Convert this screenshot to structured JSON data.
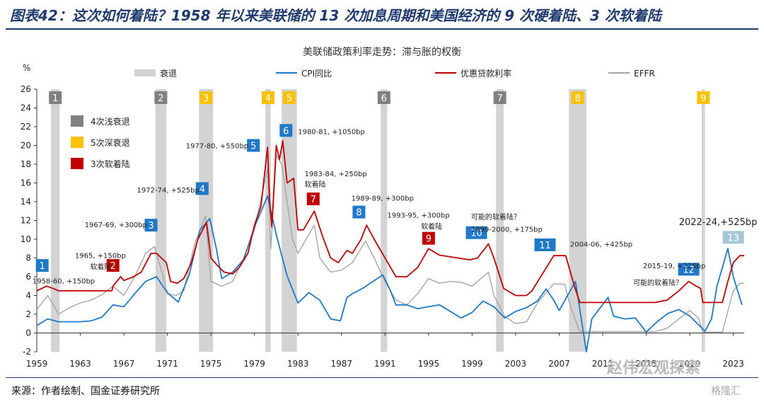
{
  "heading": "图表42：这次如何着陆？1958 年以来美联储的 13 次加息周期和美国经济的 9 次硬着陆、3 次软着陆",
  "source": "来源：作者绘制、国金证券研究所",
  "watermark": "赵伟宏观探索",
  "watermark2": "格隆汇",
  "chart_data": {
    "type": "line",
    "title": "美联储政策利率走势：滞与胀的权衡",
    "ylabel": "%",
    "ylim": [
      -2,
      26
    ],
    "yticks": [
      "-2",
      "0",
      "2",
      "4",
      "6",
      "8",
      "10",
      "12",
      "14",
      "16",
      "18",
      "20",
      "22",
      "24",
      "26"
    ],
    "xlim": [
      1959,
      2024
    ],
    "xticks": [
      "1959",
      "1963",
      "1967",
      "1971",
      "1975",
      "1979",
      "1983",
      "1987",
      "1991",
      "1995",
      "1999",
      "2003",
      "2007",
      "2011",
      "2015",
      "2019",
      "2023"
    ],
    "legend": {
      "placement": "top",
      "entries": [
        "衰退",
        "CPI同比",
        "优惠贷款利率",
        "EFFR"
      ]
    },
    "colors": {
      "recession": "#d3d3d3",
      "cpi": "#1f78c8",
      "prime": "#c00000",
      "effr": "#a6a6a6",
      "shallow": "#808080",
      "deep": "#ffc000",
      "soft": "#c00000",
      "hike": "#1f78c8",
      "hike13": "#a5c8d8"
    },
    "box_legend": [
      {
        "label": "4次浅衰退",
        "type": "shallow"
      },
      {
        "label": "5次深衰退",
        "type": "deep"
      },
      {
        "label": "3次软着陆",
        "type": "soft"
      }
    ],
    "recessions": [
      {
        "num": "1",
        "start": 1960.3,
        "end": 1961.1,
        "type": "shallow"
      },
      {
        "num": "2",
        "start": 1969.9,
        "end": 1970.9,
        "type": "shallow"
      },
      {
        "num": "3",
        "start": 1973.9,
        "end": 1975.2,
        "type": "deep"
      },
      {
        "num": "4",
        "start": 1980.0,
        "end": 1980.5,
        "type": "deep"
      },
      {
        "num": "5",
        "start": 1981.5,
        "end": 1982.9,
        "type": "deep"
      },
      {
        "num": "6",
        "start": 1990.6,
        "end": 1991.2,
        "type": "shallow"
      },
      {
        "num": "7",
        "start": 2001.2,
        "end": 2001.9,
        "type": "shallow"
      },
      {
        "num": "8",
        "start": 2007.9,
        "end": 2009.5,
        "type": "deep"
      },
      {
        "num": "9",
        "start": 2020.1,
        "end": 2020.4,
        "type": "deep"
      }
    ],
    "hike_boxes": [
      {
        "num": "1",
        "x": 1959.5,
        "y": 7.2,
        "type": "hike"
      },
      {
        "num": "2",
        "x": 1966.0,
        "y": 7.2,
        "type": "soft"
      },
      {
        "num": "3",
        "x": 1969.5,
        "y": 11.5,
        "type": "hike"
      },
      {
        "num": "4",
        "x": 1974.2,
        "y": 15.4,
        "type": "hike"
      },
      {
        "num": "5",
        "x": 1978.9,
        "y": 20.0,
        "type": "hike"
      },
      {
        "num": "6",
        "x": 1981.9,
        "y": 21.6,
        "type": "hike"
      },
      {
        "num": "7",
        "x": 1984.4,
        "y": 14.3,
        "type": "soft"
      },
      {
        "num": "8",
        "x": 1988.6,
        "y": 12.9,
        "type": "hike"
      },
      {
        "num": "9",
        "x": 1995.0,
        "y": 10.1,
        "type": "soft"
      },
      {
        "num": "10",
        "x": 1999.4,
        "y": 10.7,
        "type": "hike"
      },
      {
        "num": "11",
        "x": 2005.7,
        "y": 9.4,
        "type": "hike"
      },
      {
        "num": "12",
        "x": 2018.9,
        "y": 6.8,
        "type": "hike"
      },
      {
        "num": "13",
        "x": 2023.0,
        "y": 10.2,
        "type": "hike13"
      }
    ],
    "annotations": [
      {
        "text": "1958-60, +150bp",
        "x": 1958.6,
        "y": 5.3,
        "colored_suffix": false
      },
      {
        "text": "1965, +150bp",
        "x": 1962.5,
        "y": 8.0
      },
      {
        "text": "软着陆",
        "x": 1963.9,
        "y": 6.8
      },
      {
        "text": "1967-69, +300bp",
        "x": 1963.4,
        "y": 11.3
      },
      {
        "text": "1972-74, +525bp",
        "x": 1968.2,
        "y": 15.0
      },
      {
        "text": "1977-80, +550bp",
        "x": 1972.7,
        "y": 19.7
      },
      {
        "text": "1980-81, +1050bp",
        "x": 1983.0,
        "y": 21.2
      },
      {
        "text": "1983-84, +250bp",
        "x": 1983.6,
        "y": 16.7
      },
      {
        "text": "软着陆",
        "x": 1983.6,
        "y": 15.6
      },
      {
        "text": "1989-89, +300bp",
        "x": 1987.9,
        "y": 14.1
      },
      {
        "text": "1993-95, +300bp",
        "x": 1991.2,
        "y": 12.3
      },
      {
        "text": "软着陆",
        "x": 1994.3,
        "y": 11.1
      },
      {
        "text": "可能的软着陆？",
        "x": 1998.9,
        "y": 12.1
      },
      {
        "text": "1999-2000, +175bp",
        "x": 1998.9,
        "y": 10.8
      },
      {
        "text": "2004-06, +425bp",
        "x": 2008.0,
        "y": 9.2
      },
      {
        "text": "2015-19, +225bp",
        "x": 2014.7,
        "y": 6.9
      },
      {
        "text": "可能的软着陆？",
        "x": 2013.8,
        "y": 5.1
      },
      {
        "text": "2022-24,+525bp",
        "x": 2018.0,
        "y": 11.5,
        "large": true
      }
    ],
    "series": [
      {
        "name": "优惠贷款利率",
        "key": "prime",
        "x": [
          1959.0,
          1959.9,
          1960.6,
          1961.0,
          1965.9,
          1966.0,
          1966.7,
          1967.0,
          1967.9,
          1968.6,
          1969.5,
          1970.0,
          1970.9,
          1971.3,
          1971.9,
          1972.5,
          1973.2,
          1973.8,
          1974.6,
          1975.0,
          1975.6,
          1976.2,
          1977.0,
          1977.6,
          1978.4,
          1979.0,
          1979.6,
          1980.2,
          1980.4,
          1980.6,
          1981.0,
          1981.3,
          1981.6,
          1982.0,
          1982.6,
          1983.0,
          1983.5,
          1984.5,
          1985.2,
          1986.0,
          1986.7,
          1987.5,
          1988.0,
          1988.8,
          1989.3,
          1990.0,
          1991.0,
          1992.0,
          1993.0,
          1994.0,
          1995.0,
          1996.0,
          1998.8,
          1999.5,
          2000.5,
          2001.0,
          2001.9,
          2003.0,
          2004.0,
          2004.5,
          2006.5,
          2007.6,
          2008.4,
          2008.9,
          2015.8,
          2016.9,
          2018.0,
          2018.9,
          2019.6,
          2020.0,
          2020.2,
          2022.0,
          2022.5,
          2023.0,
          2023.6,
          2024.0
        ],
        "y": [
          4.5,
          5.0,
          4.7,
          4.5,
          4.5,
          5.0,
          6.0,
          5.6,
          6.0,
          6.5,
          8.5,
          8.5,
          7.5,
          5.5,
          5.3,
          5.8,
          7.5,
          10.0,
          11.8,
          8.0,
          7.2,
          6.5,
          6.3,
          7.0,
          8.5,
          11.5,
          13.5,
          19.8,
          14.0,
          11.3,
          20.0,
          18.5,
          20.5,
          16.0,
          16.5,
          11.0,
          11.0,
          13.0,
          10.5,
          8.0,
          7.5,
          8.8,
          8.5,
          10.0,
          11.5,
          10.0,
          8.0,
          6.0,
          6.0,
          7.0,
          9.0,
          8.3,
          7.8,
          8.0,
          9.5,
          8.0,
          4.75,
          4.0,
          4.0,
          4.5,
          8.25,
          8.25,
          5.0,
          3.25,
          3.25,
          3.5,
          4.5,
          5.5,
          5.0,
          4.75,
          3.25,
          3.25,
          5.5,
          7.5,
          8.25,
          8.25
        ]
      },
      {
        "name": "CPI同比",
        "key": "cpi",
        "x": [
          1959.0,
          1960.0,
          1961.0,
          1962.0,
          1963.0,
          1964.0,
          1965.0,
          1966.0,
          1967.0,
          1968.0,
          1969.0,
          1970.0,
          1971.0,
          1972.0,
          1973.0,
          1974.0,
          1974.9,
          1975.5,
          1976.0,
          1977.0,
          1978.0,
          1979.0,
          1980.2,
          1981.0,
          1982.0,
          1983.0,
          1984.0,
          1985.0,
          1986.0,
          1986.9,
          1987.5,
          1988.0,
          1989.0,
          1990.8,
          1991.5,
          1992.0,
          1993.0,
          1994.0,
          1995.0,
          1996.0,
          1997.0,
          1998.0,
          1999.0,
          2000.0,
          2001.0,
          2002.0,
          2003.0,
          2004.0,
          2005.0,
          2005.8,
          2006.5,
          2007.0,
          2008.5,
          2009.5,
          2010.0,
          2011.5,
          2012.0,
          2013.0,
          2014.0,
          2015.0,
          2016.0,
          2017.0,
          2018.0,
          2019.0,
          2020.4,
          2021.0,
          2021.5,
          2022.5,
          2023.0,
          2023.8
        ],
        "y": [
          0.8,
          1.5,
          1.2,
          1.2,
          1.2,
          1.3,
          1.7,
          3.0,
          2.8,
          4.2,
          5.5,
          6.0,
          4.3,
          3.3,
          6.2,
          11.0,
          12.2,
          9.0,
          5.8,
          6.5,
          7.8,
          11.3,
          14.6,
          10.5,
          6.1,
          3.2,
          4.3,
          3.5,
          1.5,
          1.3,
          3.8,
          4.2,
          4.8,
          6.2,
          4.5,
          3.0,
          3.0,
          2.6,
          2.8,
          3.0,
          2.3,
          1.6,
          2.2,
          3.4,
          2.8,
          1.6,
          2.3,
          2.7,
          3.4,
          4.7,
          3.5,
          2.4,
          5.5,
          -2.0,
          1.5,
          3.8,
          1.8,
          1.5,
          1.6,
          0.1,
          1.2,
          2.1,
          2.5,
          1.8,
          0.2,
          1.5,
          5.0,
          9.0,
          6.0,
          3.0
        ]
      },
      {
        "name": "EFFR",
        "key": "effr",
        "x": [
          1959.0,
          1960.0,
          1961.0,
          1962.0,
          1963.0,
          1964.0,
          1965.0,
          1966.0,
          1967.0,
          1968.0,
          1969.0,
          1969.8,
          1970.5,
          1971.0,
          1971.8,
          1972.5,
          1973.5,
          1974.5,
          1975.0,
          1976.0,
          1977.0,
          1978.0,
          1979.0,
          1980.2,
          1980.5,
          1981.0,
          1981.5,
          1982.0,
          1982.5,
          1983.0,
          1984.5,
          1985.0,
          1986.0,
          1987.0,
          1988.0,
          1989.2,
          1990.0,
          1991.0,
          1992.0,
          1993.0,
          1994.0,
          1995.0,
          1996.0,
          1997.0,
          1998.0,
          1999.0,
          2000.5,
          2001.0,
          2002.0,
          2003.0,
          2004.0,
          2005.0,
          2006.5,
          2007.5,
          2008.0,
          2008.9,
          2015.8,
          2016.9,
          2018.0,
          2019.0,
          2019.8,
          2020.2,
          2022.0,
          2022.5,
          2023.0,
          2023.6,
          2024.0
        ],
        "y": [
          2.5,
          4.0,
          2.0,
          2.7,
          3.2,
          3.5,
          4.1,
          5.0,
          4.0,
          6.0,
          8.5,
          9.2,
          6.5,
          4.2,
          4.0,
          4.5,
          9.5,
          12.5,
          5.5,
          5.0,
          5.5,
          8.0,
          11.0,
          17.5,
          9.0,
          19.0,
          18.0,
          14.0,
          10.0,
          8.5,
          11.5,
          8.0,
          6.5,
          6.7,
          7.5,
          9.8,
          8.0,
          5.5,
          3.5,
          3.0,
          4.2,
          5.8,
          5.3,
          5.5,
          5.4,
          5.0,
          6.5,
          4.0,
          1.75,
          1.0,
          1.2,
          3.2,
          5.25,
          5.2,
          3.0,
          0.15,
          0.15,
          0.5,
          1.5,
          2.4,
          1.6,
          0.1,
          0.1,
          2.3,
          4.5,
          5.3,
          5.3
        ]
      }
    ]
  }
}
